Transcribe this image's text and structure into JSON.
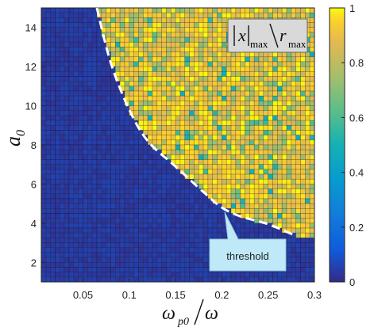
{
  "chart_data": {
    "type": "heatmap",
    "x_label_main": "ω",
    "x_label_sub": "p0",
    "x_label_den": "ω",
    "y_label_main": "a",
    "y_label_sub": "0",
    "x_range": [
      0.005,
      0.3
    ],
    "y_range": [
      1.0,
      15.0
    ],
    "x_ticks": [
      "0.05",
      "0.1",
      "0.15",
      "0.2",
      "0.25",
      "0.3"
    ],
    "x_tick_values": [
      0.05,
      0.1,
      0.15,
      0.2,
      0.25,
      0.3
    ],
    "y_ticks": [
      "2",
      "4",
      "6",
      "8",
      "10",
      "12",
      "14"
    ],
    "y_tick_values": [
      2,
      4,
      6,
      8,
      10,
      12,
      14
    ],
    "grid_cols": 59,
    "grid_rows": 56,
    "color_range": [
      0,
      1
    ],
    "colorbar_ticks": [
      "0",
      "0.2",
      "0.4",
      "0.6",
      "0.8",
      "1"
    ],
    "colorbar_tick_values": [
      0,
      0.2,
      0.4,
      0.6,
      0.8,
      1
    ],
    "colormap": "parula",
    "inset_label": {
      "x": "x",
      "x_sub": "max",
      "r": "r",
      "r_sub": "max"
    },
    "threshold_label": "threshold",
    "threshold_curve": [
      {
        "x": 0.065,
        "y": 15.0
      },
      {
        "x": 0.08,
        "y": 12.2
      },
      {
        "x": 0.1,
        "y": 9.8
      },
      {
        "x": 0.12,
        "y": 8.2
      },
      {
        "x": 0.15,
        "y": 6.9
      },
      {
        "x": 0.18,
        "y": 5.6
      },
      {
        "x": 0.2,
        "y": 4.8
      },
      {
        "x": 0.22,
        "y": 4.35
      },
      {
        "x": 0.25,
        "y": 3.95
      },
      {
        "x": 0.28,
        "y": 3.35
      }
    ],
    "low_region_value": 0.02,
    "high_region_value_range": [
      0.45,
      0.95
    ]
  },
  "colors": {
    "threshold_curve": "#ffffff",
    "callout_fill": "#bfe9f8",
    "callout_stroke": "#8ac7de",
    "inset_fill": "#d9d9d9"
  }
}
